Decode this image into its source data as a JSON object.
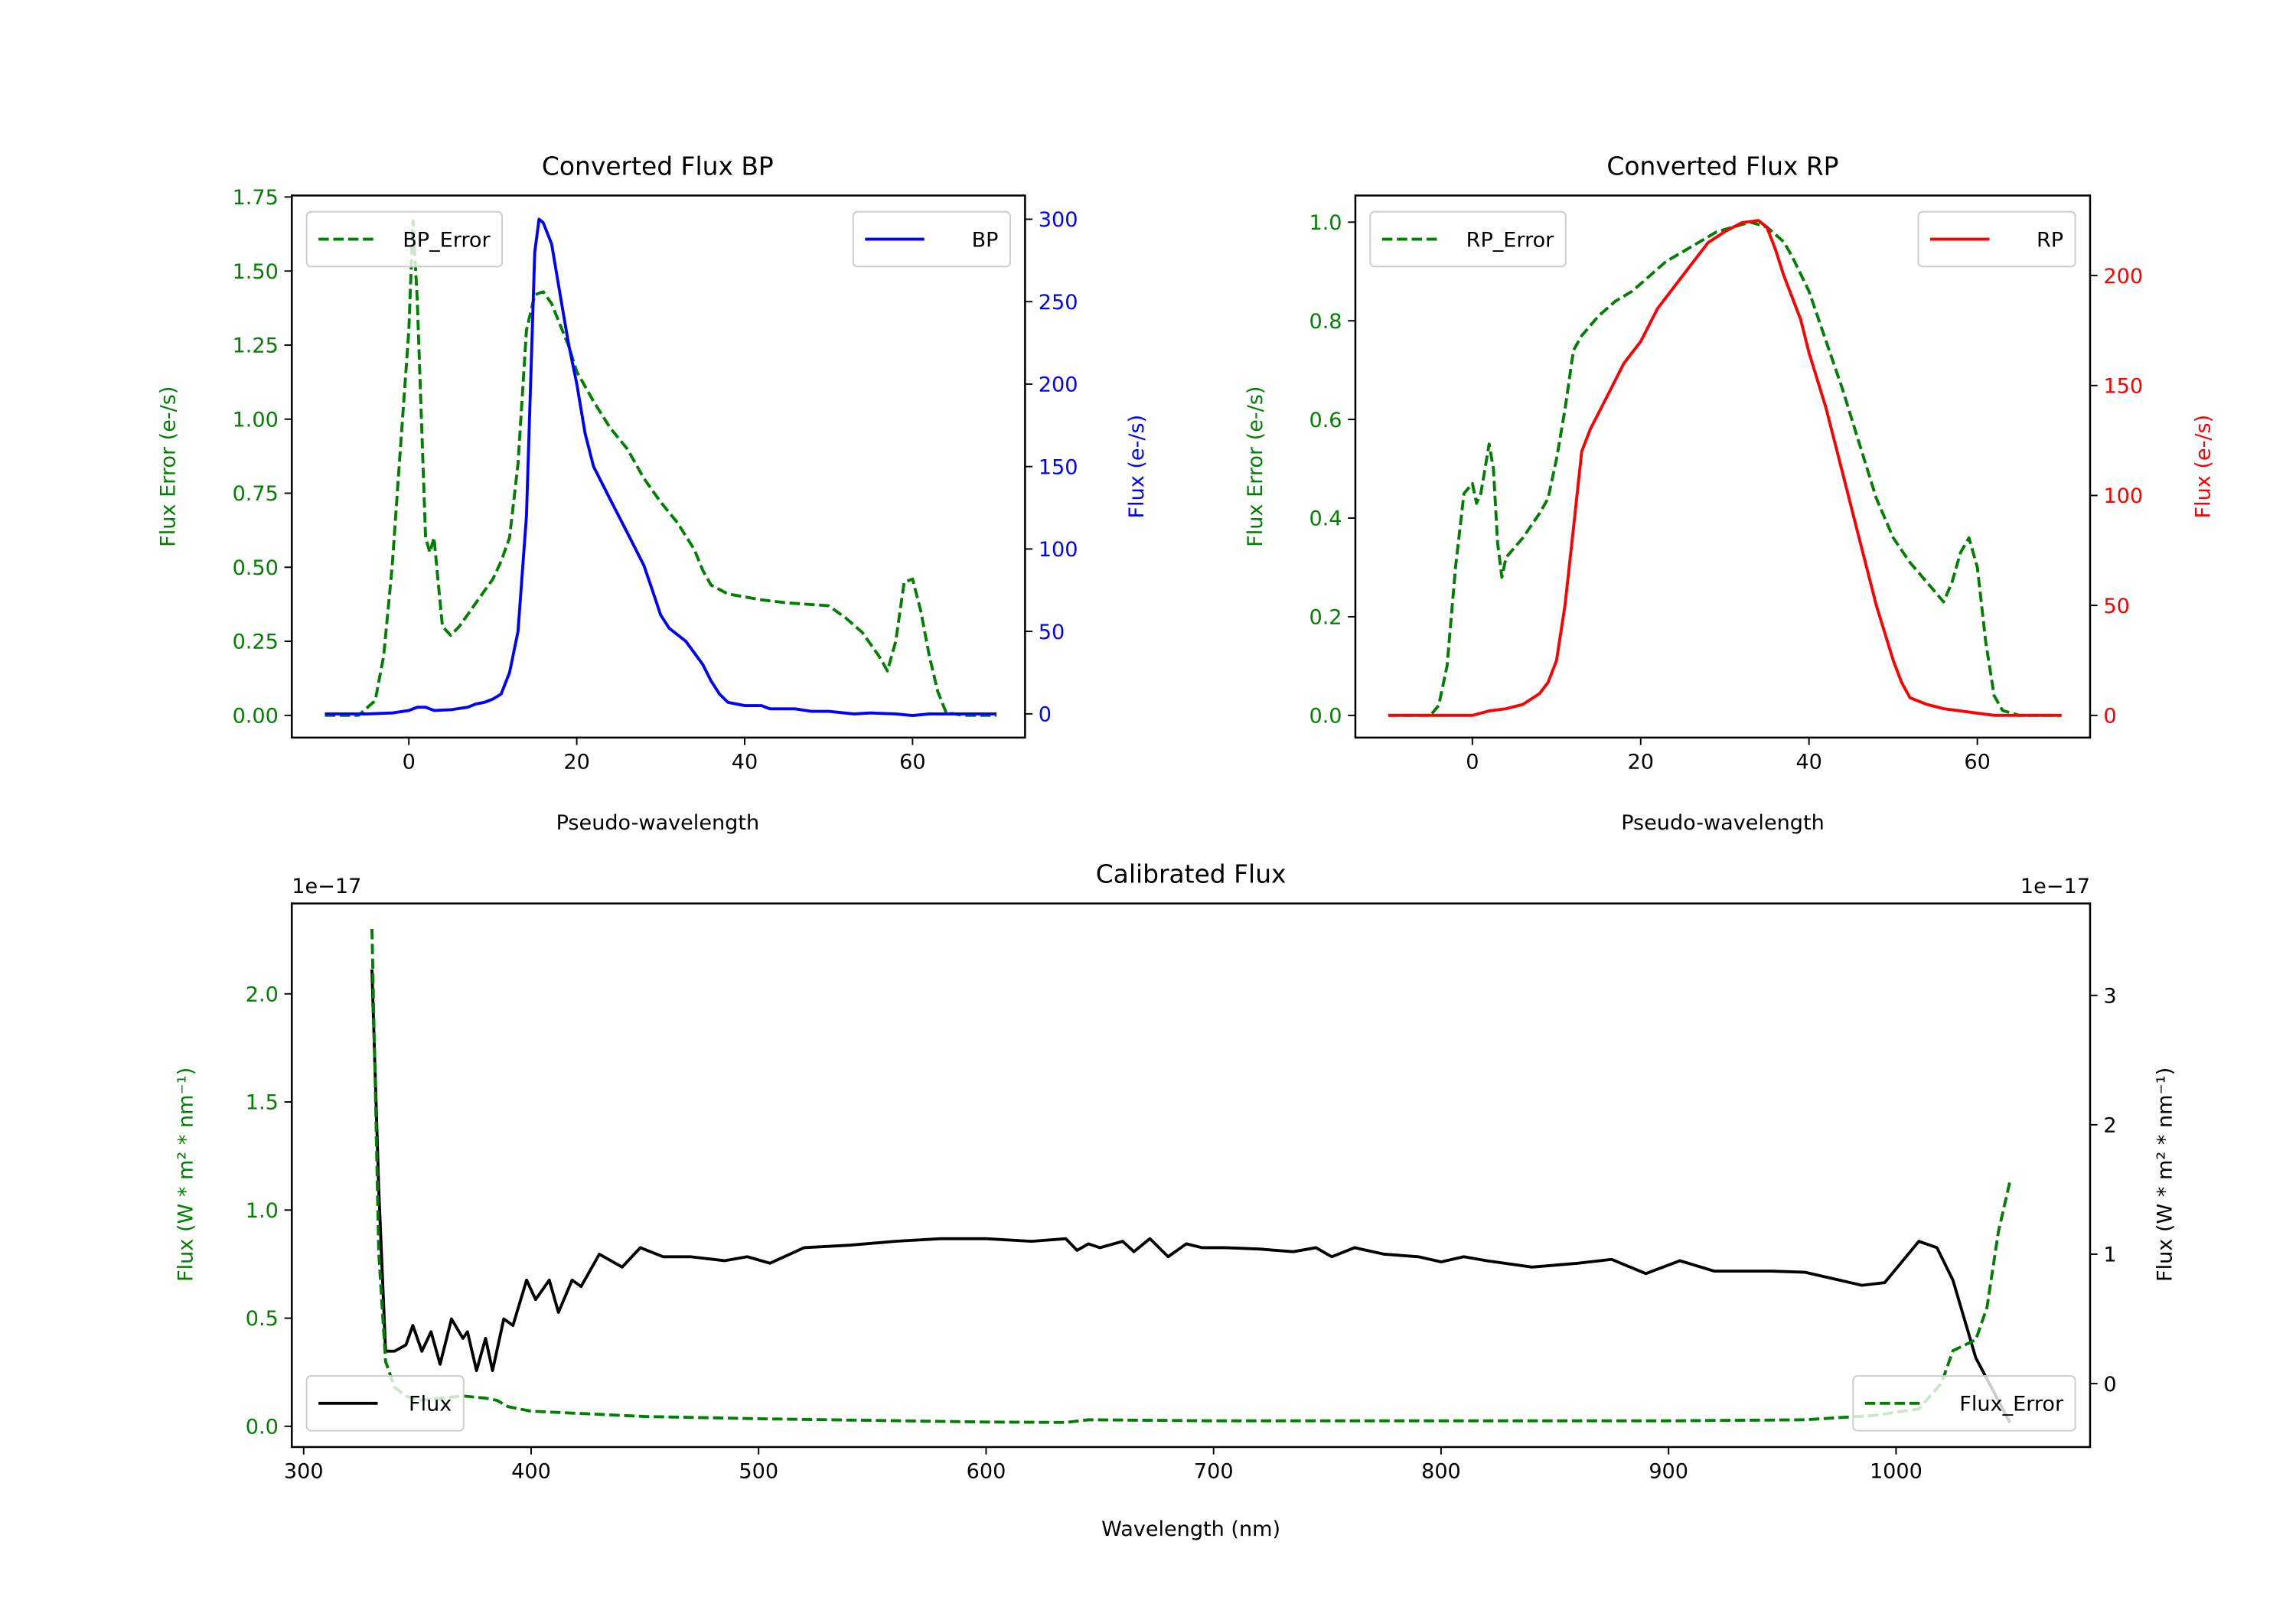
{
  "chart_data": [
    {
      "type": "line",
      "title": "Converted Flux BP",
      "xlabel": "Pseudo-wavelength",
      "ylabel_left": "Flux Error (e-/s)",
      "ylabel_right": "Flux (e-/s)",
      "left_color": "#008000",
      "right_color": "#0000ff",
      "xlim": [
        -13.94,
        73.4
      ],
      "ylim_left": [
        -0.075,
        1.755
      ],
      "ylim_right": [
        -14.4,
        314.4
      ],
      "xticks": [
        0,
        20,
        40,
        60
      ],
      "xtick_labels": [
        "0",
        "20",
        "40",
        "60"
      ],
      "yticks_left": [
        0,
        0.25,
        0.5,
        0.75,
        1.0,
        1.25,
        1.5,
        1.75
      ],
      "ytick_labels_left": [
        "0.00",
        "0.25",
        "0.50",
        "0.75",
        "1.00",
        "1.25",
        "1.50",
        "1.75"
      ],
      "yticks_right": [
        0,
        50,
        100,
        150,
        200,
        250,
        300
      ],
      "ytick_labels_right": [
        "0",
        "50",
        "100",
        "150",
        "200",
        "250",
        "300"
      ],
      "series": [
        {
          "name": "BP_Error",
          "axis": "left",
          "color": "#008000",
          "style": "dashed",
          "legend": "upper-left",
          "x": [
            -10,
            -6,
            -4,
            -3,
            -2,
            -1,
            0,
            0.5,
            1,
            1.5,
            2,
            2.5,
            3,
            3.5,
            4,
            5,
            6,
            7,
            8,
            9,
            10,
            11,
            12,
            13,
            14,
            15,
            16,
            17,
            18,
            19,
            20,
            22,
            24,
            26,
            28,
            30,
            32,
            34,
            35,
            36,
            38,
            40,
            42,
            45,
            50,
            52,
            54,
            56,
            57,
            58,
            59,
            60,
            61,
            62,
            63,
            64,
            66,
            70
          ],
          "y": [
            0,
            0,
            0.05,
            0.2,
            0.5,
            0.9,
            1.3,
            1.67,
            1.4,
            1.0,
            0.6,
            0.55,
            0.6,
            0.45,
            0.3,
            0.27,
            0.3,
            0.34,
            0.38,
            0.42,
            0.46,
            0.52,
            0.6,
            0.85,
            1.3,
            1.42,
            1.43,
            1.39,
            1.32,
            1.25,
            1.16,
            1.06,
            0.97,
            0.9,
            0.8,
            0.72,
            0.65,
            0.56,
            0.49,
            0.44,
            0.41,
            0.4,
            0.39,
            0.38,
            0.37,
            0.33,
            0.28,
            0.2,
            0.15,
            0.25,
            0.45,
            0.46,
            0.35,
            0.2,
            0.08,
            0.01,
            0,
            0
          ]
        },
        {
          "name": "BP",
          "axis": "right",
          "color": "#0000ff",
          "style": "solid",
          "legend": "upper-right",
          "x": [
            -10,
            -5,
            -2,
            0,
            1,
            2,
            3,
            5,
            7,
            8,
            9,
            10,
            11,
            12,
            13,
            14,
            15,
            15.5,
            16,
            17,
            18,
            19,
            20,
            21,
            22,
            24,
            26,
            28,
            29,
            30,
            31,
            33,
            35,
            36,
            37,
            38,
            40,
            42,
            43,
            46,
            48,
            50,
            53,
            55,
            58,
            60,
            62,
            66,
            70
          ],
          "y": [
            0,
            0,
            0.5,
            2,
            4,
            4,
            2,
            2.5,
            4,
            6,
            7,
            9,
            12,
            25,
            50,
            120,
            280,
            300,
            298,
            285,
            255,
            225,
            200,
            170,
            150,
            130,
            110,
            90,
            75,
            60,
            52,
            44,
            30,
            20,
            12,
            7,
            5,
            5,
            3,
            3,
            1.5,
            1.5,
            0,
            0.5,
            0,
            -1,
            0,
            0,
            0
          ]
        }
      ]
    },
    {
      "type": "line",
      "title": "Converted Flux RP",
      "xlabel": "Pseudo-wavelength",
      "ylabel_left": "Flux Error (e-/s)",
      "ylabel_right": "Flux (e-/s)",
      "left_color": "#008000",
      "right_color": "#ff0000",
      "xlim": [
        -13.9,
        73.4
      ],
      "ylim_left": [
        -0.045,
        1.054
      ],
      "ylim_right": [
        -10.1,
        236.4
      ],
      "xticks": [
        0,
        20,
        40,
        60
      ],
      "xtick_labels": [
        "0",
        "20",
        "40",
        "60"
      ],
      "yticks_left": [
        0,
        0.2,
        0.4,
        0.6,
        0.8,
        1.0
      ],
      "ytick_labels_left": [
        "0.0",
        "0.2",
        "0.4",
        "0.6",
        "0.8",
        "1.0"
      ],
      "yticks_right": [
        0,
        50,
        100,
        150,
        200
      ],
      "ytick_labels_right": [
        "0",
        "50",
        "100",
        "150",
        "200"
      ],
      "series": [
        {
          "name": "RP_Error",
          "axis": "left",
          "color": "#008000",
          "style": "dashed",
          "legend": "upper-left",
          "x": [
            -10,
            -5,
            -4,
            -3,
            -2,
            -1,
            0,
            0.5,
            1,
            2,
            2.5,
            3,
            3.5,
            4,
            6,
            8,
            9,
            10,
            11,
            12,
            13,
            15,
            17,
            19,
            21,
            23,
            25,
            27,
            29,
            31,
            33,
            35,
            37,
            38,
            40,
            42,
            44,
            46,
            48,
            50,
            52,
            54,
            55,
            56,
            57,
            58,
            59,
            60,
            61,
            62,
            63,
            65,
            70
          ],
          "y": [
            0,
            0,
            0.02,
            0.1,
            0.3,
            0.45,
            0.47,
            0.43,
            0.45,
            0.55,
            0.5,
            0.35,
            0.28,
            0.32,
            0.36,
            0.41,
            0.44,
            0.52,
            0.62,
            0.74,
            0.77,
            0.81,
            0.84,
            0.86,
            0.89,
            0.92,
            0.94,
            0.96,
            0.98,
            0.99,
            1.0,
            0.99,
            0.96,
            0.93,
            0.86,
            0.76,
            0.66,
            0.55,
            0.44,
            0.36,
            0.31,
            0.27,
            0.25,
            0.23,
            0.27,
            0.33,
            0.36,
            0.3,
            0.15,
            0.04,
            0.01,
            0,
            0
          ]
        },
        {
          "name": "RP",
          "axis": "right",
          "color": "#ff0000",
          "style": "solid",
          "legend": "upper-right",
          "x": [
            -10,
            0,
            1,
            2,
            4,
            6,
            8,
            9,
            10,
            11,
            12,
            13,
            14,
            16,
            18,
            20,
            22,
            24,
            26,
            28,
            30,
            32,
            34,
            35,
            36,
            37,
            38,
            39,
            40,
            42,
            44,
            46,
            48,
            50,
            51,
            52,
            54,
            56,
            58,
            60,
            62,
            70
          ],
          "y": [
            0,
            0,
            1,
            2,
            3,
            5,
            10,
            15,
            25,
            50,
            85,
            120,
            130,
            145,
            160,
            170,
            185,
            195,
            205,
            215,
            220,
            224,
            225,
            222,
            212,
            200,
            190,
            180,
            165,
            140,
            110,
            80,
            50,
            25,
            15,
            8,
            5,
            3,
            2,
            1,
            0,
            0
          ]
        }
      ]
    },
    {
      "type": "line",
      "title": "Calibrated Flux",
      "xlabel": "Wavelength (nm)",
      "ylabel_left": "Flux (W * m² * nm⁻¹)",
      "ylabel_right": "Flux (W * m² * nm⁻¹)",
      "offset_left": "1e−17",
      "offset_right": "1e−17",
      "left_color": "#008000",
      "right_color": "#000000",
      "xlim": [
        294.8,
        1085.3
      ],
      "ylim_left": [
        -0.096,
        2.418
      ],
      "ylim_right": [
        -0.49,
        3.71
      ],
      "xticks": [
        300,
        400,
        500,
        600,
        700,
        800,
        900,
        1000
      ],
      "xtick_labels": [
        "300",
        "400",
        "500",
        "600",
        "700",
        "800",
        "900",
        "1000"
      ],
      "yticks_left": [
        0,
        0.5,
        1.0,
        1.5,
        2.0
      ],
      "ytick_labels_left": [
        "0.0",
        "0.5",
        "1.0",
        "1.5",
        "2.0"
      ],
      "yticks_right": [
        0,
        1,
        2,
        3
      ],
      "ytick_labels_right": [
        "0",
        "1",
        "2",
        "3"
      ],
      "series": [
        {
          "name": "Flux",
          "axis": "right",
          "color": "#000000",
          "style": "solid",
          "legend": "lower-left",
          "x": [
            330,
            333,
            336,
            340,
            345,
            348,
            352,
            356,
            360,
            365,
            370,
            372,
            376,
            380,
            383,
            388,
            392,
            398,
            402,
            408,
            412,
            418,
            422,
            430,
            440,
            448,
            458,
            470,
            485,
            495,
            505,
            520,
            540,
            560,
            580,
            600,
            620,
            635,
            640,
            645,
            650,
            660,
            665,
            672,
            680,
            688,
            695,
            705,
            720,
            735,
            745,
            752,
            762,
            775,
            790,
            800,
            810,
            820,
            840,
            860,
            875,
            890,
            905,
            920,
            945,
            960,
            985,
            995,
            1010,
            1018,
            1025,
            1035,
            1050
          ],
          "y": [
            3.2,
            1.5,
            0.25,
            0.25,
            0.3,
            0.45,
            0.25,
            0.4,
            0.15,
            0.5,
            0.35,
            0.4,
            0.1,
            0.35,
            0.1,
            0.5,
            0.45,
            0.8,
            0.65,
            0.8,
            0.55,
            0.8,
            0.75,
            1.0,
            0.9,
            1.05,
            0.98,
            0.98,
            0.95,
            0.98,
            0.93,
            1.05,
            1.07,
            1.1,
            1.12,
            1.12,
            1.1,
            1.12,
            1.03,
            1.08,
            1.05,
            1.1,
            1.02,
            1.12,
            0.98,
            1.08,
            1.05,
            1.05,
            1.04,
            1.02,
            1.05,
            0.98,
            1.05,
            1.0,
            0.98,
            0.94,
            0.98,
            0.95,
            0.9,
            0.93,
            0.96,
            0.85,
            0.95,
            0.87,
            0.87,
            0.86,
            0.76,
            0.78,
            1.1,
            1.05,
            0.8,
            0.2,
            -0.3
          ]
        },
        {
          "name": "Flux_Error",
          "axis": "left",
          "color": "#008000",
          "style": "dashed",
          "legend": "lower-right",
          "x": [
            330,
            333,
            336,
            340,
            345,
            350,
            360,
            370,
            380,
            385,
            390,
            400,
            420,
            450,
            500,
            600,
            635,
            645,
            700,
            800,
            900,
            960,
            990,
            1010,
            1020,
            1025,
            1035,
            1040,
            1045,
            1050
          ],
          "y": [
            2.3,
            0.8,
            0.3,
            0.18,
            0.14,
            0.12,
            0.13,
            0.14,
            0.13,
            0.12,
            0.09,
            0.07,
            0.06,
            0.045,
            0.035,
            0.02,
            0.018,
            0.03,
            0.025,
            0.025,
            0.025,
            0.03,
            0.05,
            0.08,
            0.2,
            0.35,
            0.4,
            0.55,
            0.9,
            1.13
          ]
        }
      ]
    }
  ]
}
